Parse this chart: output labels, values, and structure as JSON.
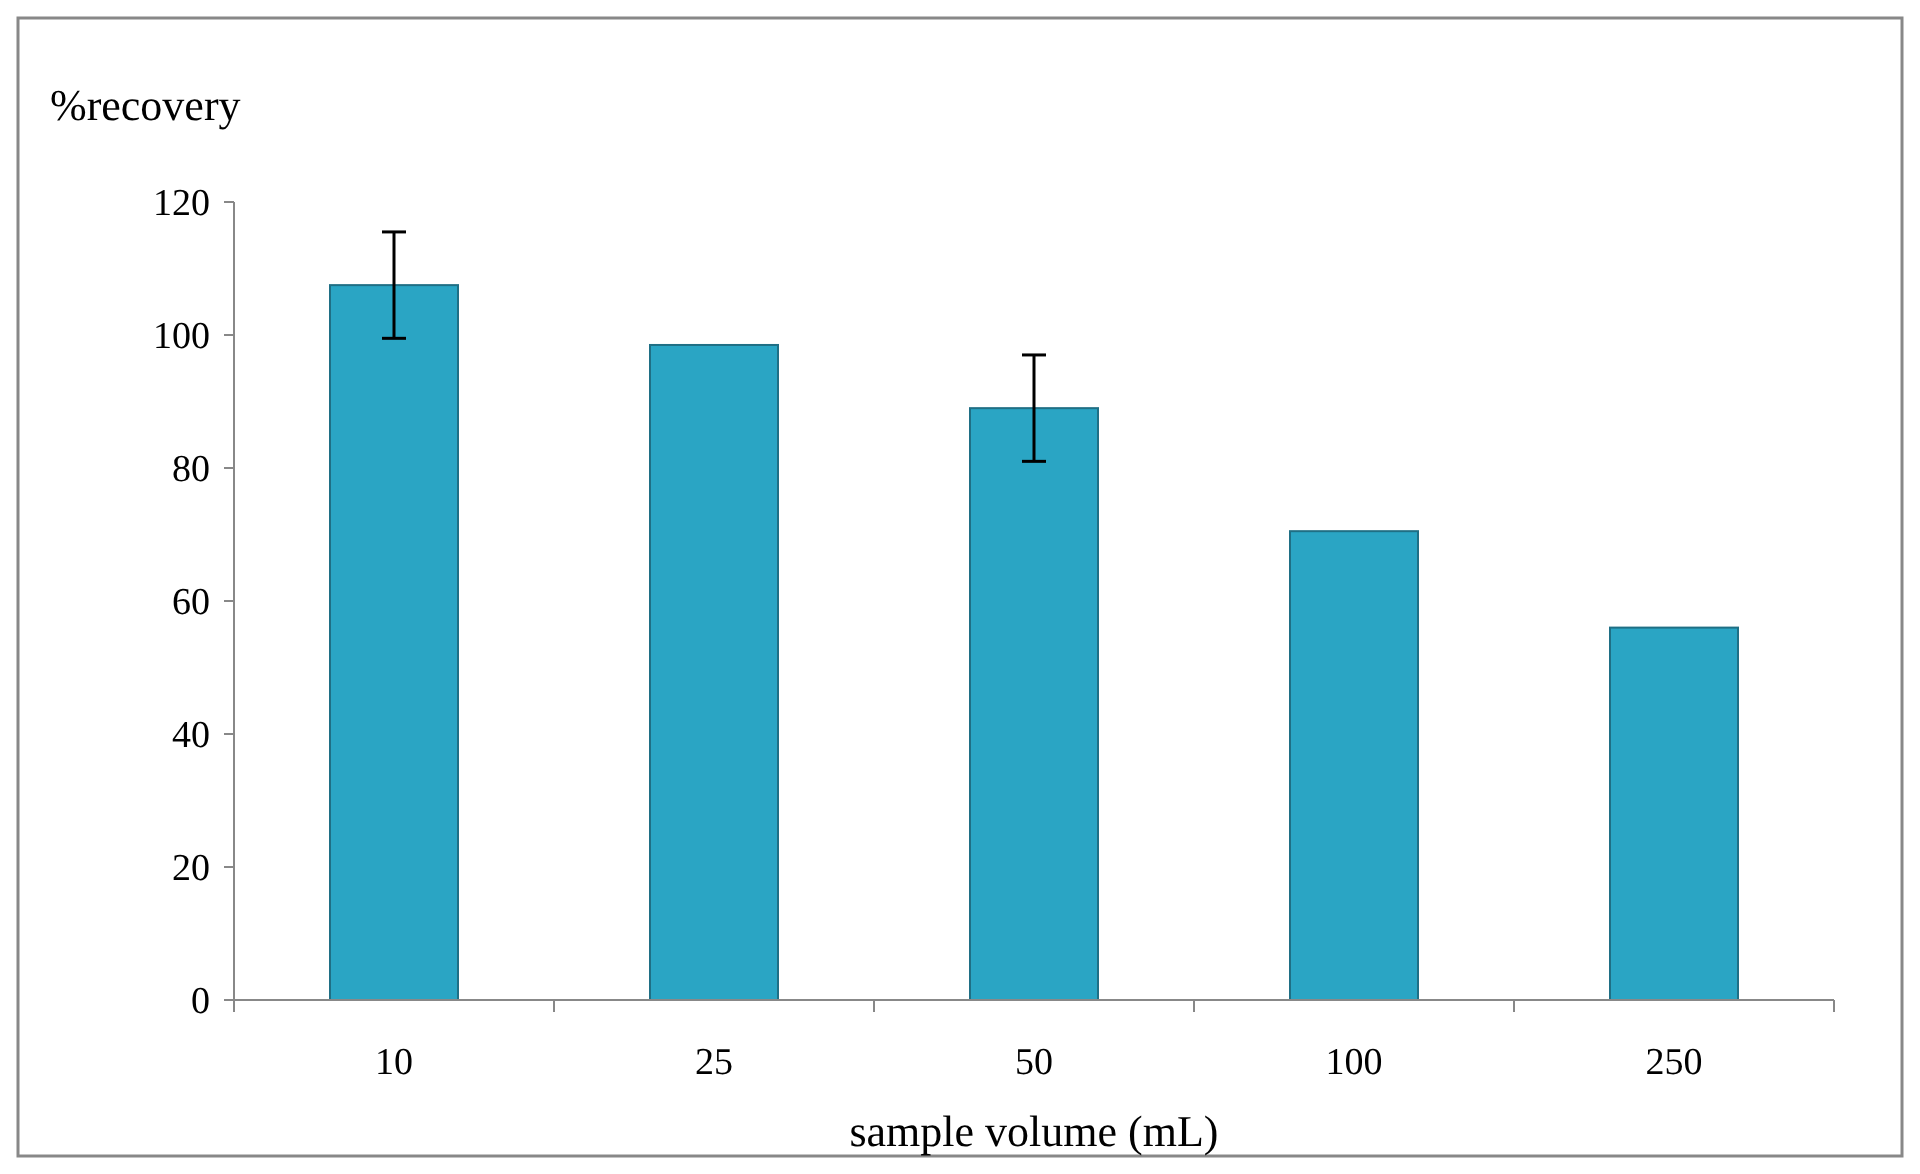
{
  "chart_data": {
    "type": "bar",
    "xlabel": "sample volume (mL)",
    "ylabel": "%recovery",
    "categories": [
      "10",
      "25",
      "50",
      "100",
      "250"
    ],
    "values": [
      107.5,
      98.5,
      89,
      70.5,
      56
    ],
    "errors": [
      8,
      null,
      8,
      null,
      null
    ],
    "color": "#2aa5c4",
    "ylim": [
      0,
      120
    ],
    "yticks": [
      0,
      20,
      40,
      60,
      80,
      100,
      120
    ],
    "grid": false
  }
}
